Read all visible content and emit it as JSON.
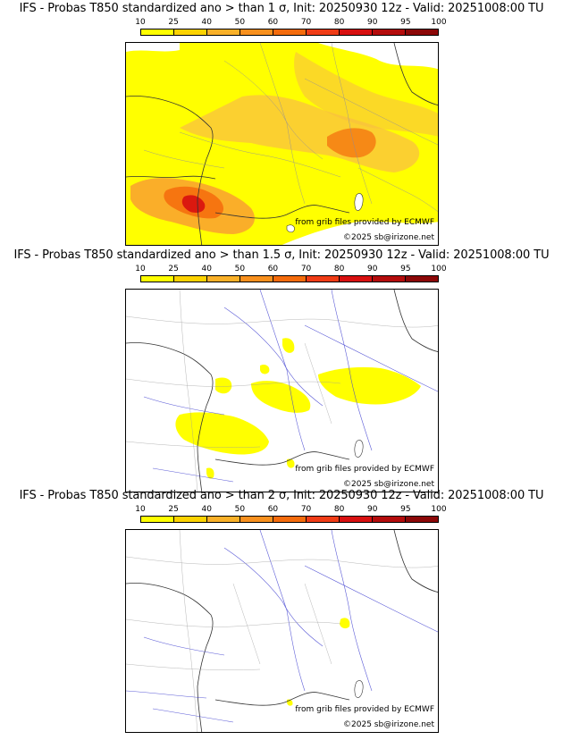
{
  "colorbar": {
    "ticks": [
      "10",
      "25",
      "40",
      "50",
      "60",
      "70",
      "80",
      "90",
      "95",
      "100"
    ],
    "colors": [
      "#ffff00",
      "#fcd200",
      "#f9b028",
      "#f8901e",
      "#f46b0c",
      "#f03c16",
      "#d81010",
      "#b40c0c",
      "#8c0808",
      "#5a0000"
    ]
  },
  "credit": {
    "source": "from grib files provided by ECMWF",
    "copyright": "©2025 sb@irizone.net"
  },
  "panels": [
    {
      "title": "IFS - Probas T850  standardized ano > than 1 σ, Init: 20250930 12z - Valid: 20251008:00 TU",
      "threshold_sigma": 1
    },
    {
      "title": "IFS - Probas T850  standardized ano > than 1.5 σ, Init: 20250930 12z - Valid: 20251008:00 TU",
      "threshold_sigma": 1.5
    },
    {
      "title": "IFS - Probas T850  standardized ano > than 2 σ, Init: 20250930 12z - Valid: 20251008:00 TU",
      "threshold_sigma": 2
    }
  ]
}
